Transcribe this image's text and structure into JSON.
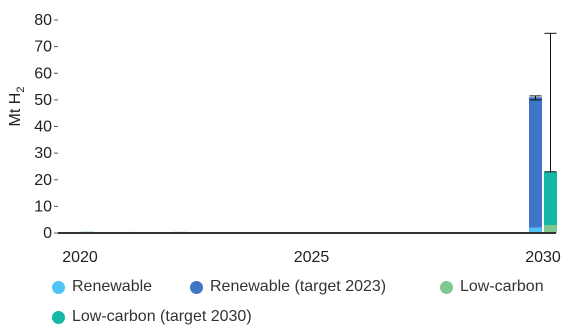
{
  "chart_data": {
    "type": "bar",
    "stacked": true,
    "ylabel_main": "Mt H",
    "ylabel_sub": "2",
    "ylim": [
      0,
      80
    ],
    "yticks": [
      0,
      10,
      20,
      30,
      40,
      50,
      60,
      70,
      80
    ],
    "x": [
      2020,
      2021,
      2022,
      2023,
      2024,
      2025,
      2026,
      2027,
      2028,
      2029,
      2030
    ],
    "xtick_labels": [
      "2020",
      "2025",
      "2030"
    ],
    "grid": false,
    "legend_position": "bottom",
    "series": [
      {
        "name": "Renewable",
        "color": "#4fc3f7",
        "values": [
          0.05,
          0.05,
          0.05,
          0,
          0,
          0,
          0,
          0,
          0,
          0,
          2
        ]
      },
      {
        "name": "Renewable (target 2023)",
        "color": "#3f74c6",
        "values": [
          0,
          0,
          0,
          0,
          0,
          0,
          0,
          0,
          0,
          0,
          49
        ]
      },
      {
        "name": "Low-carbon",
        "color": "#7dc98f",
        "values": [
          0.5,
          0.4,
          0.45,
          0,
          0,
          0,
          0,
          0,
          0,
          0,
          3
        ]
      },
      {
        "name": "Low-carbon (target 2030)",
        "color": "#14b8a6",
        "values": [
          0,
          0,
          0,
          0,
          0,
          0,
          0,
          0,
          0,
          0,
          20
        ]
      }
    ],
    "error_bars": [
      {
        "x": 2030,
        "group": "renewable",
        "low": 50,
        "high": 51.5
      },
      {
        "x": 2030,
        "group": "low-carbon",
        "low": 23,
        "high": 75
      }
    ]
  }
}
